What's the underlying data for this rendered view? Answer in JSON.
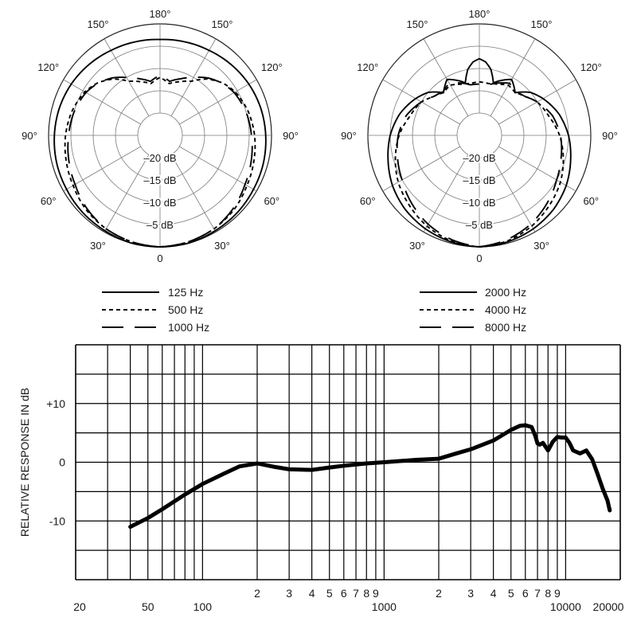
{
  "chart_data": [
    {
      "type": "polar",
      "panel": "left",
      "angle_labels": [
        "180°",
        "150°",
        "150°",
        "120°",
        "120°",
        "90°",
        "90°",
        "60°",
        "60°",
        "30°",
        "30°",
        "0"
      ],
      "ring_labels": [
        "–20 dB",
        "–15 dB",
        "–10 dB",
        "–5 dB"
      ],
      "radial_range_db": [
        -25,
        0
      ],
      "grid": true,
      "series": [
        {
          "name": "125 Hz",
          "style": "solid",
          "angles_deg": [
            0,
            15,
            30,
            45,
            60,
            75,
            90,
            105,
            120,
            135,
            150,
            165,
            180
          ],
          "level_db": [
            0,
            0,
            -0.3,
            -0.5,
            -0.8,
            -1.0,
            -1.3,
            -1.6,
            -2.0,
            -2.5,
            -3.0,
            -3.3,
            -3.5
          ]
        },
        {
          "name": "500 Hz",
          "style": "short-dash",
          "angles_deg": [
            0,
            15,
            30,
            45,
            60,
            75,
            90,
            105,
            120,
            130,
            140,
            150,
            160,
            170,
            180
          ],
          "level_db": [
            0,
            -0.3,
            -0.8,
            -1.5,
            -2.5,
            -3.2,
            -3.8,
            -4.5,
            -5.5,
            -6.7,
            -8.5,
            -11.0,
            -12.2,
            -13.2,
            -12.0
          ]
        },
        {
          "name": "1000 Hz",
          "style": "long-dash",
          "angles_deg": [
            0,
            15,
            30,
            45,
            60,
            75,
            90,
            105,
            120,
            130,
            140,
            150,
            160,
            170,
            180
          ],
          "level_db": [
            0,
            -0.3,
            -0.8,
            -1.8,
            -3.0,
            -3.8,
            -4.5,
            -5.0,
            -5.8,
            -6.8,
            -8.2,
            -10.0,
            -11.5,
            -12.7,
            -11.5
          ]
        }
      ]
    },
    {
      "type": "polar",
      "panel": "right",
      "angle_labels": [
        "180°",
        "150°",
        "150°",
        "120°",
        "120°",
        "90°",
        "90°",
        "60°",
        "60°",
        "30°",
        "30°",
        "0"
      ],
      "ring_labels": [
        "–20 dB",
        "–15 dB",
        "–10 dB",
        "–5 dB"
      ],
      "radial_range_db": [
        -25,
        0
      ],
      "grid": true,
      "series": [
        {
          "name": "2000 Hz",
          "style": "solid",
          "angles_deg": [
            0,
            15,
            30,
            45,
            60,
            75,
            90,
            105,
            120,
            130,
            140,
            150,
            160,
            165,
            170,
            175,
            180
          ],
          "level_db": [
            0,
            -0.3,
            -0.8,
            -1.5,
            -2.5,
            -3.8,
            -5.0,
            -6.5,
            -8.5,
            -10.0,
            -12.5,
            -10.5,
            -12.0,
            -12.8,
            -10.0,
            -8.5,
            -7.8
          ]
        },
        {
          "name": "4000 Hz",
          "style": "short-dash",
          "angles_deg": [
            0,
            15,
            30,
            45,
            60,
            75,
            90,
            105,
            120,
            130,
            140,
            150,
            160,
            170,
            180
          ],
          "level_db": [
            0,
            -0.5,
            -1.5,
            -2.8,
            -4.0,
            -5.5,
            -7.0,
            -8.8,
            -10.0,
            -11.5,
            -12.5,
            -12.0,
            -12.8,
            -13.2,
            -13.0
          ]
        },
        {
          "name": "8000 Hz",
          "style": "long-dash",
          "angles_deg": [
            0,
            15,
            30,
            45,
            60,
            75,
            90,
            105,
            120,
            130,
            140,
            150,
            160,
            170,
            180
          ],
          "level_db": [
            0,
            -0.8,
            -2.0,
            -3.5,
            -5.0,
            -6.0,
            -6.8,
            -8.0,
            -10.0,
            -11.5,
            -12.3,
            -11.5,
            -12.5,
            -13.5,
            -13.5
          ]
        }
      ]
    },
    {
      "type": "line",
      "x_scale": "log",
      "xlim": [
        20,
        20000
      ],
      "ylim": [
        -20,
        20
      ],
      "ylabel": "RELATIVE RESPONSE IN dB",
      "y_tick_labels": [
        "+10",
        "0",
        "-10"
      ],
      "x_tick_labels": [
        "20",
        "50",
        "100",
        "2",
        "3",
        "4",
        "5",
        "6",
        "7",
        "8",
        "9",
        "1000",
        "2",
        "3",
        "4",
        "5",
        "6",
        "7",
        "8",
        "9",
        "10000",
        "20000"
      ],
      "grid": true,
      "series": [
        {
          "x": [
            40,
            50,
            60,
            80,
            100,
            130,
            160,
            200,
            250,
            300,
            400,
            500,
            600,
            800,
            1000,
            1500,
            2000,
            2500,
            3000,
            4000,
            5000,
            5600,
            6000,
            6500,
            6800,
            7000,
            7200,
            7500,
            8000,
            8500,
            9000,
            9500,
            10000,
            10500,
            11000,
            12000,
            13000,
            14000,
            15000,
            16000,
            17000,
            17500
          ],
          "y": [
            -11.0,
            -9.5,
            -8.0,
            -5.5,
            -3.7,
            -2.0,
            -0.7,
            -0.2,
            -0.8,
            -1.2,
            -1.3,
            -0.9,
            -0.6,
            -0.2,
            0,
            0.4,
            0.6,
            1.5,
            2.2,
            3.7,
            5.5,
            6.2,
            6.3,
            6.0,
            4.5,
            3.2,
            3.0,
            3.3,
            2.0,
            3.5,
            4.3,
            4.2,
            4.2,
            3.3,
            2.0,
            1.5,
            2.0,
            0.5,
            -2.0,
            -4.5,
            -6.5,
            -8.2
          ]
        }
      ]
    }
  ]
}
